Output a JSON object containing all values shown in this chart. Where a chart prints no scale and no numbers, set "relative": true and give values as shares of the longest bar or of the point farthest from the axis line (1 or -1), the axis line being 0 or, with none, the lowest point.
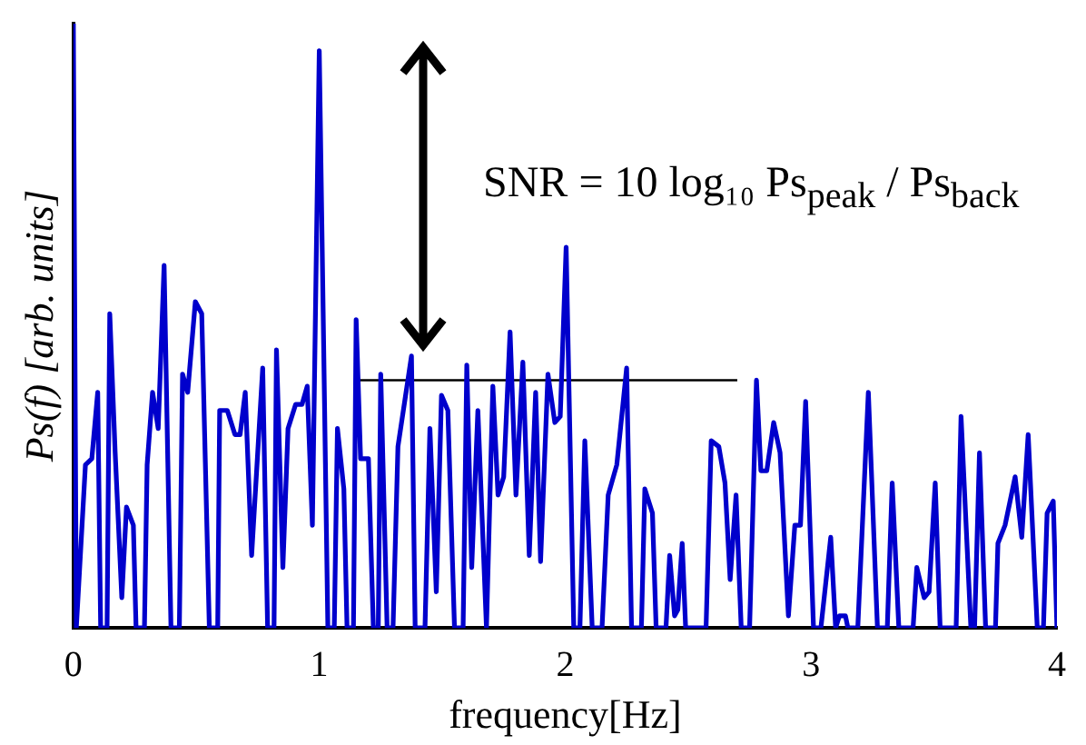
{
  "chart_data": {
    "type": "line",
    "xlabel": "frequency[Hz]",
    "ylabel": "Ps(f) [arb. units]",
    "annotations": [
      "SNR = 10 log₁₀ Ps$_{peak}$ / Ps$_{back}$"
    ],
    "relative": true,
    "xlim": [
      0,
      4
    ],
    "xticks": [
      0,
      1,
      2,
      3,
      4
    ],
    "grid": false,
    "legend": false,
    "marker": "none",
    "line_style": "solid",
    "series": [
      {
        "color": "#0000cc",
        "x": [
          0,
          0.012,
          0.018,
          0.049,
          0.075,
          0.099,
          0.111,
          0.137,
          0.148,
          0.17,
          0.197,
          0.216,
          0.244,
          0.255,
          0.289,
          0.3,
          0.322,
          0.345,
          0.369,
          0.397,
          0.431,
          0.444,
          0.465,
          0.496,
          0.522,
          0.553,
          0.587,
          0.595,
          0.626,
          0.657,
          0.678,
          0.699,
          0.725,
          0.77,
          0.79,
          0.816,
          0.826,
          0.852,
          0.873,
          0.904,
          0.93,
          0.951,
          0.972,
          1.0,
          1.035,
          1.061,
          1.074,
          1.1,
          1.113,
          1.139,
          1.15,
          1.168,
          1.2,
          1.22,
          1.24,
          1.25,
          1.276,
          1.3,
          1.32,
          1.375,
          1.39,
          1.43,
          1.45,
          1.476,
          1.497,
          1.523,
          1.55,
          1.585,
          1.6,
          1.62,
          1.645,
          1.68,
          1.706,
          1.727,
          1.75,
          1.776,
          1.8,
          1.828,
          1.854,
          1.88,
          1.9,
          1.93,
          1.958,
          1.98,
          2.004,
          2.035,
          2.06,
          2.08,
          2.11,
          2.15,
          2.175,
          2.21,
          2.25,
          2.27,
          2.31,
          2.324,
          2.355,
          2.37,
          2.41,
          2.425,
          2.445,
          2.458,
          2.476,
          2.49,
          2.573,
          2.594,
          2.625,
          2.65,
          2.671,
          2.695,
          2.716,
          2.75,
          2.778,
          2.796,
          2.82,
          2.848,
          2.874,
          2.908,
          2.934,
          2.957,
          2.978,
          3.01,
          3.04,
          3.08,
          3.1,
          3.115,
          3.14,
          3.15,
          3.19,
          3.233,
          3.27,
          3.31,
          3.33,
          3.357,
          3.415,
          3.43,
          3.46,
          3.48,
          3.505,
          3.525,
          3.59,
          3.61,
          3.65,
          3.665,
          3.685,
          3.71,
          3.75,
          3.76,
          3.789,
          3.83,
          3.857,
          3.883,
          3.92,
          3.945,
          3.96,
          3.985,
          4.0
        ],
        "values": [
          1,
          0,
          0,
          0.27,
          0.28,
          0.39,
          0,
          0,
          0.52,
          0.29,
          0.05,
          0.2,
          0.17,
          0,
          0,
          0.27,
          0.39,
          0.33,
          0.6,
          0,
          0,
          0.42,
          0.39,
          0.54,
          0.52,
          0,
          0,
          0.36,
          0.36,
          0.32,
          0.32,
          0.39,
          0.12,
          0.43,
          0,
          0,
          0.46,
          0.1,
          0.33,
          0.37,
          0.37,
          0.4,
          0.17,
          0.955,
          0,
          0,
          0.33,
          0.23,
          0,
          0,
          0.51,
          0.28,
          0.28,
          0,
          0,
          0.42,
          0,
          0,
          0.3,
          0.45,
          0,
          0,
          0.33,
          0.06,
          0.385,
          0.36,
          0,
          0,
          0.435,
          0.1,
          0.36,
          0,
          0.4,
          0.22,
          0.25,
          0.49,
          0.22,
          0.44,
          0.12,
          0.39,
          0.11,
          0.42,
          0.34,
          0.35,
          0.63,
          0,
          0,
          0.31,
          0,
          0,
          0.22,
          0.27,
          0.43,
          0,
          0,
          0.23,
          0.19,
          0,
          0,
          0.12,
          0.02,
          0.03,
          0.14,
          0,
          0,
          0.31,
          0.3,
          0.24,
          0.08,
          0.22,
          0,
          0,
          0.41,
          0.26,
          0.26,
          0.34,
          0.29,
          0.02,
          0.17,
          0.17,
          0.375,
          0,
          0,
          0.15,
          0,
          0.02,
          0.02,
          0,
          0,
          0.39,
          0,
          0,
          0.24,
          0,
          0,
          0.1,
          0.05,
          0.06,
          0.24,
          0,
          0,
          0.35,
          0,
          0,
          0.29,
          0,
          0,
          0.14,
          0.17,
          0.25,
          0.15,
          0.32,
          0,
          0,
          0.19,
          0.21,
          0
        ]
      },
      {
        "type": "line",
        "color": "#000000",
        "x": [
          1.15,
          2.7
        ],
        "values": [
          0.41,
          0.41
        ]
      }
    ]
  }
}
